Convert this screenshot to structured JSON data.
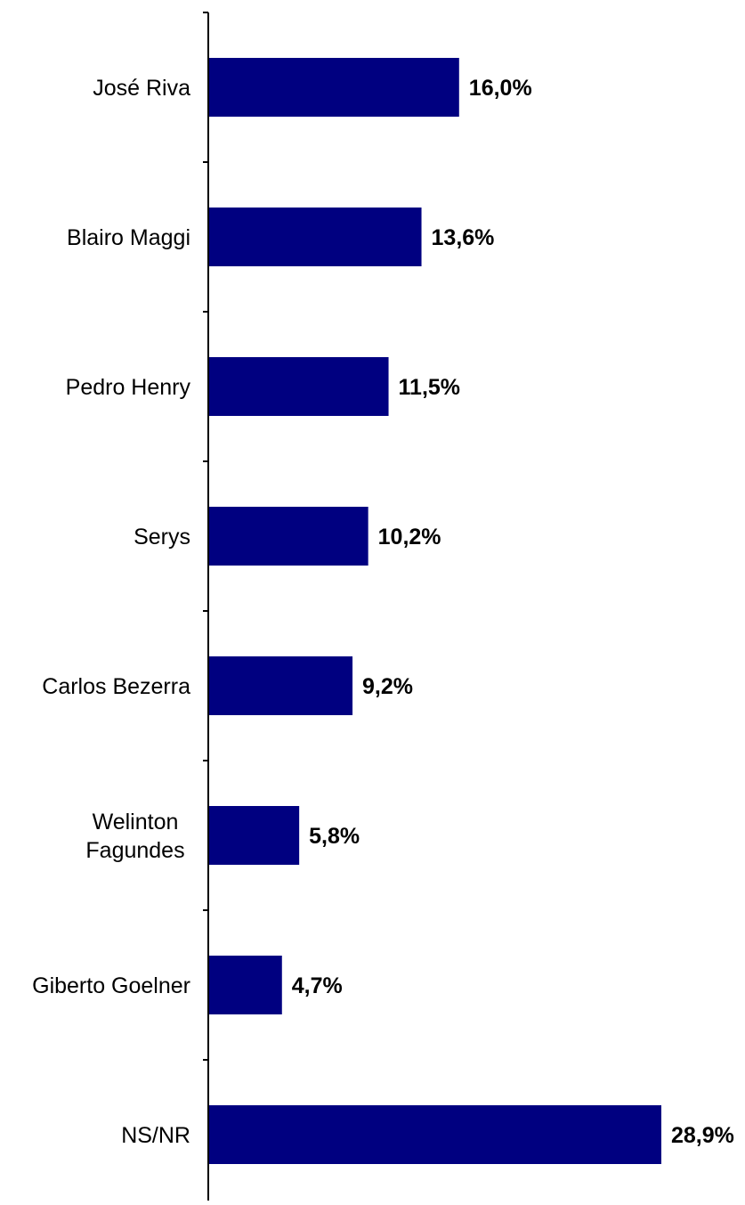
{
  "chart_data": {
    "type": "bar",
    "orientation": "horizontal",
    "categories": [
      "José Riva",
      "Blairo Maggi",
      "Pedro Henry",
      "Serys",
      "Carlos Bezerra",
      "Welinton Fagundes",
      "Giberto Goelner",
      "NS/NR"
    ],
    "category_lines": [
      [
        "José Riva"
      ],
      [
        "Blairo Maggi"
      ],
      [
        "Pedro Henry"
      ],
      [
        "Serys"
      ],
      [
        "Carlos Bezerra"
      ],
      [
        "Welinton",
        "Fagundes"
      ],
      [
        "Giberto Goelner"
      ],
      [
        "NS/NR"
      ]
    ],
    "values": [
      16.0,
      13.6,
      11.5,
      10.2,
      9.2,
      5.8,
      4.7,
      28.9
    ],
    "value_labels": [
      "16,0%",
      "13,6%",
      "11,5%",
      "10,2%",
      "9,2%",
      "5,8%",
      "4,7%",
      "28,9%"
    ],
    "title": "",
    "xlabel": "",
    "ylabel": "",
    "xlim": [
      0,
      29
    ],
    "grid": false,
    "legend": "none",
    "bar_color": "#000080",
    "axis_color": "#000000"
  }
}
